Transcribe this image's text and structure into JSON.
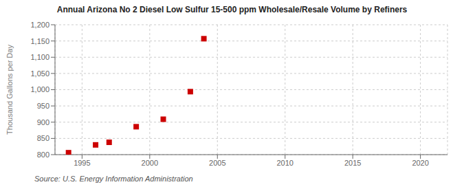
{
  "chart_data": {
    "type": "scatter",
    "title": "Annual Arizona No 2 Diesel Low Sulfur 15-500 ppm Wholesale/Resale Volume by Refiners",
    "ylabel": "Thousand Gallons per Day",
    "annotations": [
      "Source: U.S. Energy Information Administration"
    ],
    "x": [
      1994,
      1996,
      1997,
      1999,
      2001,
      2003,
      2004
    ],
    "values": [
      806,
      830,
      838,
      886,
      909,
      994,
      1157
    ],
    "color": "#cc0000",
    "marker": "square",
    "xlim": [
      1993,
      2022
    ],
    "ylim": [
      800,
      1200
    ],
    "xticks": [
      1995,
      2000,
      2005,
      2010,
      2015,
      2020
    ],
    "yticks": [
      800,
      850,
      900,
      950,
      {
        "value": 1000,
        "label": "1,000"
      },
      {
        "value": 1050,
        "label": "1,050"
      },
      {
        "value": 1100,
        "label": "1,100"
      },
      {
        "value": 1150,
        "label": "1,150"
      },
      {
        "value": 1200,
        "label": "1,200"
      }
    ],
    "grid": true
  }
}
